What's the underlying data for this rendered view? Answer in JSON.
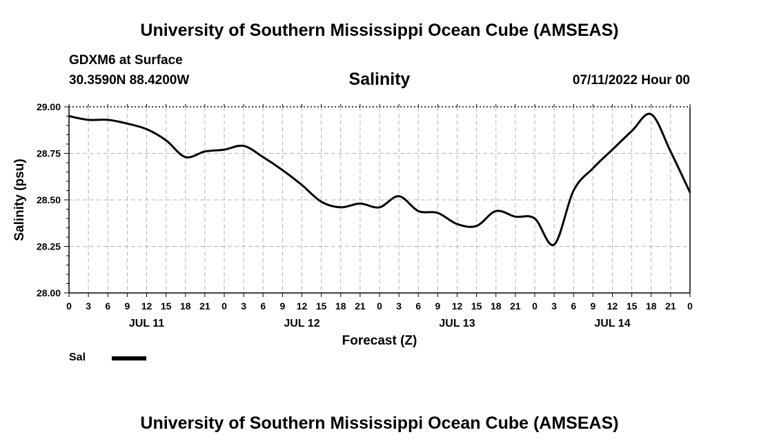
{
  "header": {
    "title": "University of Southern Mississippi Ocean Cube (AMSEAS)",
    "station": "GDXM6 at Surface",
    "coords": "30.3590N  88.4200W",
    "date": "07/11/2022 Hour 00",
    "footer_title": "University of Southern Mississippi Ocean Cube (AMSEAS)"
  },
  "chart_data": {
    "type": "line",
    "title": "Salinity",
    "xlabel": "Forecast (Z)",
    "ylabel": "Salinity (psu)",
    "ylim": [
      28.0,
      29.0
    ],
    "xlim": [
      0,
      96
    ],
    "grid": true,
    "yticks": [
      "28.00",
      "28.25",
      "28.50",
      "28.75",
      "29.00"
    ],
    "ytick_values": [
      28.0,
      28.25,
      28.5,
      28.75,
      29.0
    ],
    "xtick_labels": [
      "0",
      "3",
      "6",
      "9",
      "12",
      "15",
      "18",
      "21",
      "0",
      "3",
      "6",
      "9",
      "12",
      "15",
      "18",
      "21",
      "0",
      "3",
      "6",
      "9",
      "12",
      "15",
      "18",
      "21",
      "0",
      "3",
      "6",
      "9",
      "12",
      "15",
      "18",
      "21",
      "0"
    ],
    "day_labels": [
      {
        "label": "JUL 11",
        "hour": 12
      },
      {
        "label": "JUL 12",
        "hour": 36
      },
      {
        "label": "JUL 13",
        "hour": 60
      },
      {
        "label": "JUL 14",
        "hour": 84
      }
    ],
    "series": [
      {
        "name": "Sal",
        "color": "#000000",
        "x": [
          0,
          3,
          6,
          9,
          12,
          15,
          18,
          21,
          24,
          27,
          30,
          33,
          36,
          39,
          42,
          45,
          48,
          51,
          54,
          57,
          60,
          63,
          66,
          69,
          72,
          75,
          78,
          81,
          84,
          87,
          90,
          93,
          96
        ],
        "values": [
          28.95,
          28.93,
          28.93,
          28.91,
          28.88,
          28.82,
          28.73,
          28.76,
          28.77,
          28.79,
          28.73,
          28.66,
          28.58,
          28.49,
          28.46,
          28.48,
          28.46,
          28.52,
          28.44,
          28.43,
          28.37,
          28.36,
          28.44,
          28.41,
          28.4,
          28.26,
          28.55,
          28.67,
          28.77,
          28.87,
          28.96,
          28.76,
          28.54
        ]
      }
    ]
  },
  "legend": {
    "label": "Sal"
  }
}
